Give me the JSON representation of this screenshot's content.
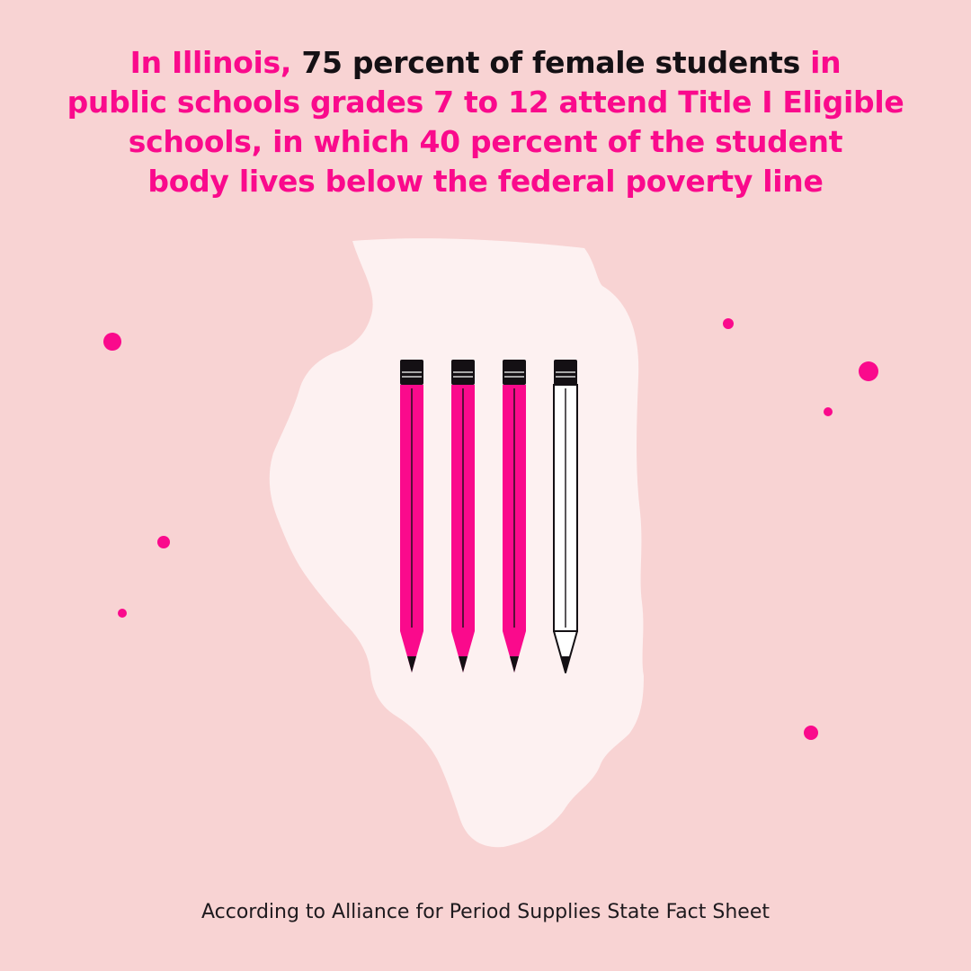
{
  "headline": {
    "l1_a": "In Illinois,",
    "l1_b": "75 percent of female students",
    "l1_c": "in",
    "l2": "public schools grades 7 to 12 attend Title I Eligible",
    "l3": "schools, in which 40 percent of the student",
    "l4": "body lives below the federal poverty line"
  },
  "footer": {
    "source": "According to Alliance for Period Supplies State Fact Sheet"
  },
  "pictogram": {
    "value_percent": 75,
    "filled_count": 3,
    "total_count": 4,
    "filled_color": "#fa0a8c",
    "empty_color": "#ffffff"
  },
  "colors": {
    "background": "#f8d3d3",
    "accent": "#fa0a8c",
    "dark_text": "#141014",
    "map": "#fdf1f1"
  },
  "icons": {
    "map": "illinois-map-icon",
    "pencil": "pencil-icon",
    "dot": "dot-icon"
  }
}
